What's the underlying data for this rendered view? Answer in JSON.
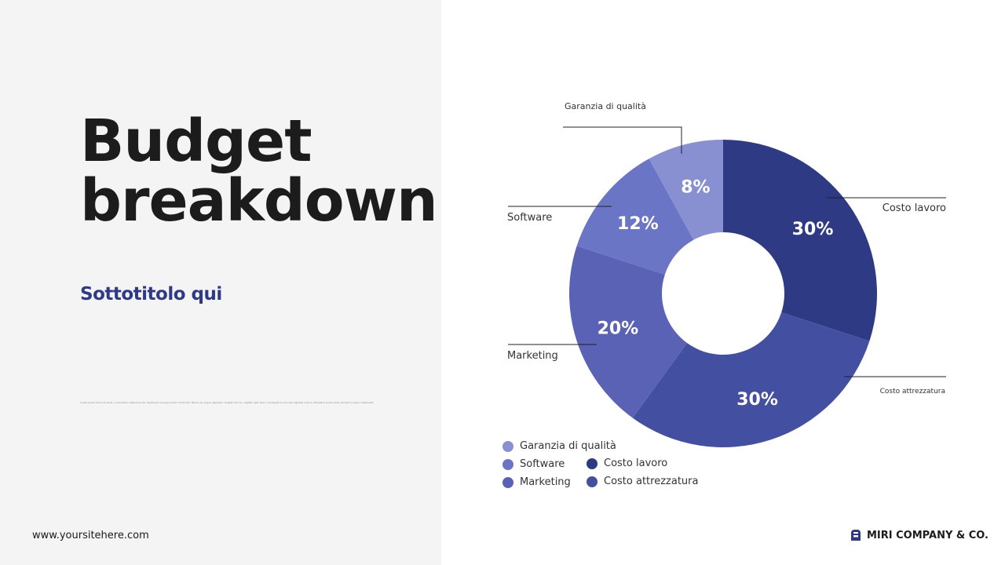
{
  "slide": {
    "title_line1": "Budget",
    "title_line2": "breakdown",
    "subtitle": "Sottotitolo qui",
    "body_text": "Lorem ipsum dolor sit amet, consectetur adipiscing elit. Vestibulum posuere lorem id lobortis. Mauris eu augue dignissim, feugiat nisi non, sagittis velit. Nunc consequat nisl et risus egestas viverra. Phasellus auctor ante vel diam congue malesuada.",
    "website": "www.yoursitehere.com",
    "brand": "MIRI COMPANY & CO."
  },
  "chart_data": {
    "type": "pie",
    "donut": true,
    "slices": [
      {
        "label": "Costo lavoro",
        "value": 30,
        "value_label": "30%",
        "color": "#2e3a84"
      },
      {
        "label": "Costo attrezzatura",
        "value": 30,
        "value_label": "30%",
        "color": "#434fa0"
      },
      {
        "label": "Marketing",
        "value": 20,
        "value_label": "20%",
        "color": "#5962b4"
      },
      {
        "label": "Software",
        "value": 12,
        "value_label": "12%",
        "color": "#6b75c6"
      },
      {
        "label": "Garanzia di qualità",
        "value": 8,
        "value_label": "8%",
        "color": "#8890d2"
      }
    ],
    "legend": [
      "Garanzia di qualità",
      "Software",
      "Marketing",
      "Costo lavoro",
      "Costo attrezzatura"
    ],
    "legend_placement": "bottom-left"
  }
}
